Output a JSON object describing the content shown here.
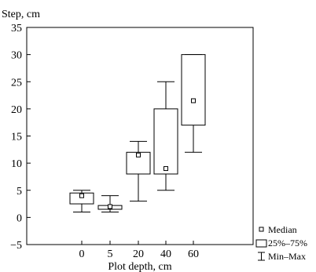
{
  "chart_data": {
    "type": "boxplot",
    "ylabel": "Step, cm",
    "xlabel": "Plot depth, cm",
    "ylim": [
      -5,
      35
    ],
    "yticks": [
      -5,
      0,
      5,
      10,
      15,
      20,
      25,
      30,
      35
    ],
    "categories": [
      "0",
      "5",
      "20",
      "40",
      "60"
    ],
    "boxes": [
      {
        "category": "0",
        "min": 1,
        "q1": 2.5,
        "median": 4,
        "q3": 4.5,
        "max": 5
      },
      {
        "category": "5",
        "min": 1,
        "q1": 1.5,
        "median": 2,
        "q3": 2.2,
        "max": 4
      },
      {
        "category": "20",
        "min": 3,
        "q1": 8,
        "median": 11.5,
        "q3": 12,
        "max": 14
      },
      {
        "category": "40",
        "min": 5,
        "q1": 8,
        "median": 9,
        "q3": 20,
        "max": 25
      },
      {
        "category": "60",
        "min": 12,
        "q1": 17,
        "median": 21.5,
        "q3": 30,
        "max": 30
      }
    ],
    "legend": {
      "placement": "bottom-right",
      "entries": [
        "Median",
        "25%–75%",
        "Min–Max"
      ]
    },
    "grid": false
  }
}
